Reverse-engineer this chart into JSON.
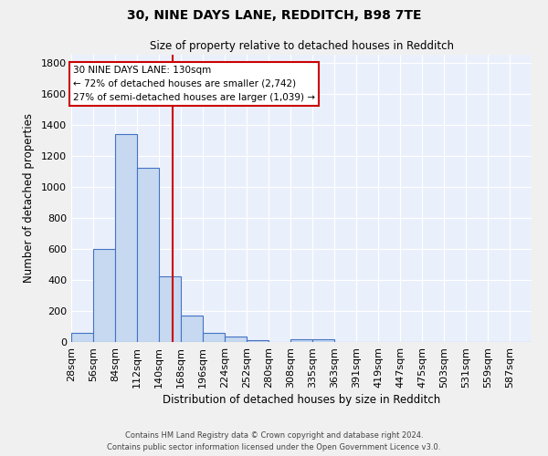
{
  "title_line1": "30, NINE DAYS LANE, REDDITCH, B98 7TE",
  "title_line2": "Size of property relative to detached houses in Redditch",
  "xlabel": "Distribution of detached houses by size in Redditch",
  "ylabel": "Number of detached properties",
  "footer_line1": "Contains HM Land Registry data © Crown copyright and database right 2024.",
  "footer_line2": "Contains public sector information licensed under the Open Government Licence v3.0.",
  "bar_labels": [
    "28sqm",
    "56sqm",
    "84sqm",
    "112sqm",
    "140sqm",
    "168sqm",
    "196sqm",
    "224sqm",
    "252sqm",
    "280sqm",
    "308sqm",
    "335sqm",
    "363sqm",
    "391sqm",
    "419sqm",
    "447sqm",
    "475sqm",
    "503sqm",
    "531sqm",
    "559sqm",
    "587sqm"
  ],
  "bar_values": [
    57,
    600,
    1340,
    1120,
    425,
    170,
    60,
    38,
    12,
    0,
    18,
    20,
    0,
    0,
    0,
    0,
    0,
    0,
    0,
    0,
    0
  ],
  "bar_color": "#c6d9f0",
  "bar_edge_color": "#4472c4",
  "background_color": "#eaf0fb",
  "grid_color": "#ffffff",
  "fig_background": "#f0f0f0",
  "ylim": [
    0,
    1850
  ],
  "yticks": [
    0,
    200,
    400,
    600,
    800,
    1000,
    1200,
    1400,
    1600,
    1800
  ],
  "annotation_text_line1": "30 NINE DAYS LANE: 130sqm",
  "annotation_text_line2": "← 72% of detached houses are smaller (2,742)",
  "annotation_text_line3": "27% of semi-detached houses are larger (1,039) →",
  "redline_x": 130,
  "annotation_box_color": "#ffffff",
  "annotation_box_edge_color": "#cc0000"
}
